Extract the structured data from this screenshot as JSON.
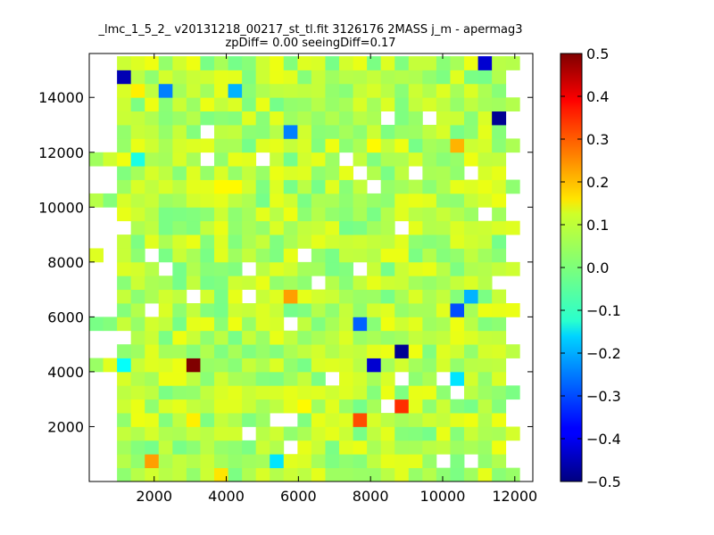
{
  "chart_data": {
    "type": "heatmap",
    "title": "_lmc_1_5_2_ v20131218_00217_st_tl.fit 3126176 2MASS j_m - apermag3",
    "subtitle": "zpDiff= 0.00 seeingDiff=0.17",
    "xlabel": "",
    "ylabel": "",
    "xlim": [
      200,
      12500
    ],
    "ylim": [
      0,
      15600
    ],
    "x_ticks": [
      "2000",
      "4000",
      "6000",
      "8000",
      "10000",
      "12000"
    ],
    "x_tick_values": [
      2000,
      4000,
      6000,
      8000,
      10000,
      12000
    ],
    "y_ticks": [
      "2000",
      "4000",
      "6000",
      "8000",
      "10000",
      "12000",
      "14000"
    ],
    "y_tick_values": [
      2000,
      4000,
      6000,
      8000,
      10000,
      12000,
      14000
    ],
    "grid": false,
    "colormap": "jet",
    "colorbar": {
      "vmin": -0.5,
      "vmax": 0.5,
      "ticks": [
        "0.5",
        "0.4",
        "0.3",
        "0.2",
        "0.1",
        "0.0",
        "−0.1",
        "−0.2",
        "−0.3",
        "−0.4",
        "−0.5"
      ],
      "tick_values": [
        0.5,
        0.4,
        0.3,
        0.2,
        0.1,
        0.0,
        -0.1,
        -0.2,
        -0.3,
        -0.4,
        -0.5
      ]
    },
    "bin_size": [
      385,
      500
    ],
    "x_origin": 200,
    "y_origin": 0,
    "background_value": 0.05,
    "notable_cells": [
      {
        "x": 1050,
        "y": 14750,
        "value": -0.45
      },
      {
        "x": 1430,
        "y": 14250,
        "value": 0.14
      },
      {
        "x": 2200,
        "y": 14250,
        "value": -0.25
      },
      {
        "x": 4130,
        "y": 14250,
        "value": -0.2
      },
      {
        "x": 5670,
        "y": 12750,
        "value": -0.25
      },
      {
        "x": 7980,
        "y": 12250,
        "value": 0.13
      },
      {
        "x": 10300,
        "y": 12250,
        "value": 0.2
      },
      {
        "x": 11070,
        "y": 15250,
        "value": -0.42
      },
      {
        "x": 11450,
        "y": 13250,
        "value": -0.48
      },
      {
        "x": 1430,
        "y": 11750,
        "value": -0.1
      },
      {
        "x": 3750,
        "y": 10750,
        "value": 0.13
      },
      {
        "x": 4130,
        "y": 10750,
        "value": 0.13
      },
      {
        "x": 5670,
        "y": 6750,
        "value": 0.22
      },
      {
        "x": 7600,
        "y": 5750,
        "value": -0.28
      },
      {
        "x": 8750,
        "y": 4750,
        "value": -0.48
      },
      {
        "x": 3000,
        "y": 4250,
        "value": 0.5
      },
      {
        "x": 8000,
        "y": 4250,
        "value": -0.42
      },
      {
        "x": 1050,
        "y": 4250,
        "value": -0.12
      },
      {
        "x": 10300,
        "y": 6250,
        "value": -0.3
      },
      {
        "x": 10680,
        "y": 6750,
        "value": -0.2
      },
      {
        "x": 10300,
        "y": 3750,
        "value": -0.15
      },
      {
        "x": 8750,
        "y": 2750,
        "value": 0.33
      },
      {
        "x": 7600,
        "y": 2250,
        "value": 0.3
      },
      {
        "x": 5280,
        "y": 750,
        "value": -0.15
      },
      {
        "x": 1820,
        "y": 750,
        "value": 0.22
      },
      {
        "x": 3750,
        "y": 250,
        "value": 0.15
      },
      {
        "x": 2900,
        "y": 2250,
        "value": 0.14
      },
      {
        "x": 6050,
        "y": 2750,
        "value": 0.13
      }
    ]
  },
  "colors": {
    "axes_frame": "#000000",
    "background": "#ffffff"
  }
}
